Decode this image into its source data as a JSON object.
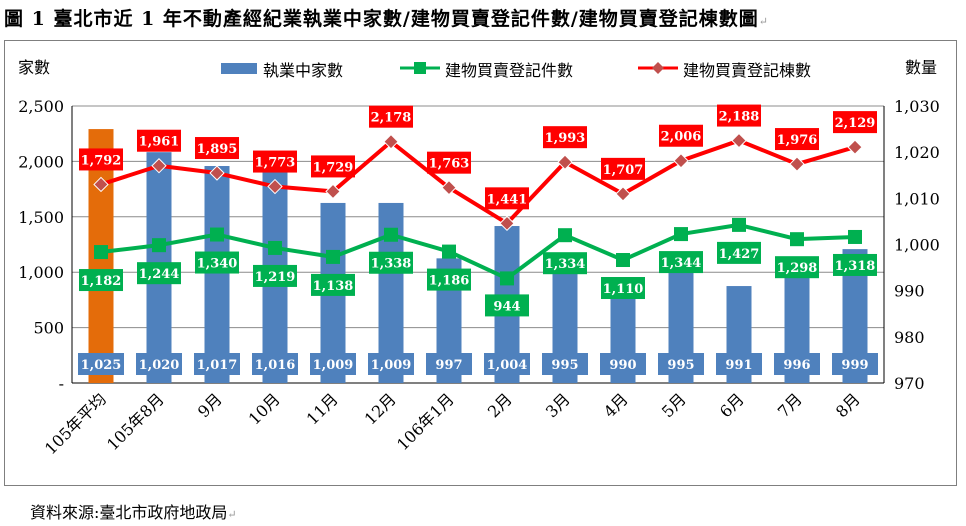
{
  "page": {
    "title": "圖 1 臺北市近 1 年不動產經紀業執業中家數/建物買賣登記件數/建物買賣登記棟數圖",
    "source": "資料來源:臺北市政府地政局",
    "return_mark": "↵"
  },
  "chart_data": {
    "type": "bar+line",
    "categories": [
      "105年平均",
      "105年8月",
      "9月",
      "10月",
      "11月",
      "12月",
      "106年1月",
      "2月",
      "3月",
      "4月",
      "5月",
      "6月",
      "7月",
      "8月"
    ],
    "left_axis": {
      "label": "家數",
      "min": 0,
      "max": 2500,
      "ticks": [
        "-",
        "500",
        "1,000",
        "1,500",
        "2,000",
        "2,500"
      ]
    },
    "right_axis": {
      "label": "數量",
      "min": 970,
      "max": 1030,
      "ticks": [
        "970",
        "980",
        "990",
        "1,000",
        "1,010",
        "1,020",
        "1,030"
      ]
    },
    "series": [
      {
        "name": "執業中家數",
        "kind": "bar",
        "axis": "right",
        "color": "#4f81bd",
        "highlight_color": "#e46c0a",
        "values": [
          1025,
          1020,
          1017,
          1016,
          1009,
          1009,
          997,
          1004,
          995,
          990,
          995,
          991,
          996,
          999
        ],
        "labels": [
          "1,025",
          "1,020",
          "1,017",
          "1,016",
          "1,009",
          "1,009",
          "997",
          "1,004",
          "995",
          "990",
          "995",
          "991",
          "996",
          "999"
        ]
      },
      {
        "name": "建物買賣登記件數",
        "kind": "line",
        "axis": "left",
        "color": "#00b050",
        "values": [
          1182,
          1244,
          1340,
          1219,
          1138,
          1338,
          1186,
          944,
          1334,
          1110,
          1344,
          1427,
          1298,
          1318
        ],
        "labels": [
          "1,182",
          "1,244",
          "1,340",
          "1,219",
          "1,138",
          "1,338",
          "1,186",
          "944",
          "1,334",
          "1,110",
          "1,344",
          "1,427",
          "1,298",
          "1,318"
        ]
      },
      {
        "name": "建物買賣登記棟數",
        "kind": "line",
        "axis": "left",
        "color": "#ff0000",
        "marker_color": "#c0504d",
        "values": [
          1792,
          1961,
          1895,
          1773,
          1729,
          2178,
          1763,
          1441,
          1993,
          1707,
          2006,
          2188,
          1976,
          2129
        ],
        "labels": [
          "1,792",
          "1,961",
          "1,895",
          "1,773",
          "1,729",
          "2,178",
          "1,763",
          "1,441",
          "1,993",
          "1,707",
          "2,006",
          "2,188",
          "1,976",
          "2,129"
        ]
      }
    ],
    "grid": true,
    "legend": "top"
  }
}
